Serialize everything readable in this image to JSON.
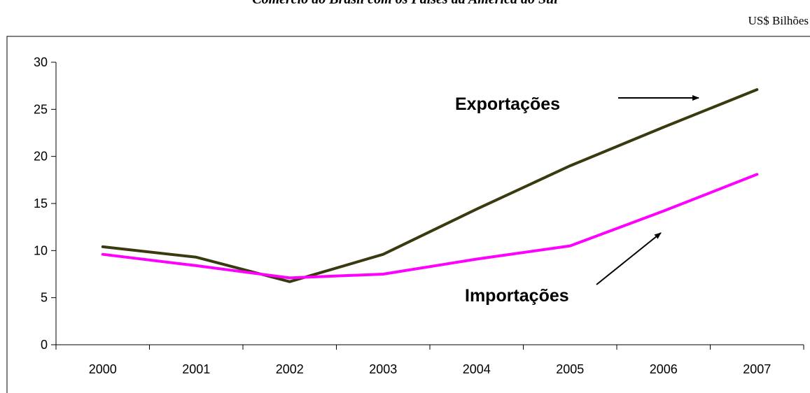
{
  "chart_data": {
    "type": "line",
    "title": "Comércio do Brasil com os Países da América do Sul",
    "unit_label": "US$ Bilhões",
    "categories": [
      "2000",
      "2001",
      "2002",
      "2003",
      "2004",
      "2005",
      "2006",
      "2007"
    ],
    "ylim": [
      0,
      30
    ],
    "yticks": [
      "0",
      "5",
      "10",
      "15",
      "20",
      "25",
      "30"
    ],
    "grid": false,
    "series": [
      {
        "name": "Exportações",
        "color": "#3a3a10",
        "values": [
          10.4,
          9.3,
          6.7,
          9.6,
          14.4,
          19.0,
          23.1,
          27.1
        ]
      },
      {
        "name": "Importações",
        "color": "#ff00ff",
        "values": [
          9.6,
          8.4,
          7.1,
          7.5,
          9.1,
          10.5,
          14.2,
          18.1
        ]
      }
    ],
    "annotations": [
      {
        "text": "Exportações",
        "series": "Exportações"
      },
      {
        "text": "Importações",
        "series": "Importações"
      }
    ]
  }
}
